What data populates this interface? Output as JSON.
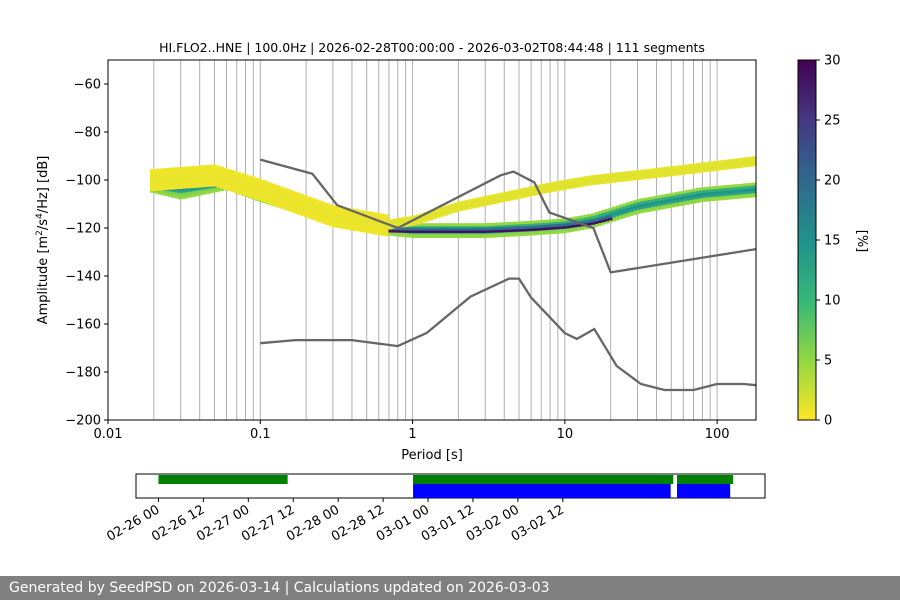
{
  "chart_data": [
    {
      "type": "heatmap",
      "title": "HI.FLO2..HNE | 100.0Hz | 2026-02-28T00:00:00 - 2026-03-02T08:44:48 | 111 segments",
      "xlabel": "Period [s]",
      "ylabel_parts": [
        "Amplitude [m",
        "2",
        "/s",
        "4",
        "/Hz] [dB]"
      ],
      "x_scale": "log",
      "xlim": [
        0.01,
        180
      ],
      "ylim": [
        -200,
        -50
      ],
      "x_ticks": [
        {
          "v": 0.01,
          "label": "0.01"
        },
        {
          "v": 0.1,
          "label": "0.1"
        },
        {
          "v": 1,
          "label": "1"
        },
        {
          "v": 10,
          "label": "10"
        },
        {
          "v": 100,
          "label": "100"
        }
      ],
      "y_ticks": [
        {
          "v": -60,
          "label": "−60"
        },
        {
          "v": -80,
          "label": "−80"
        },
        {
          "v": -100,
          "label": "−100"
        },
        {
          "v": -120,
          "label": "−120"
        },
        {
          "v": -140,
          "label": "−140"
        },
        {
          "v": -160,
          "label": "−160"
        },
        {
          "v": -180,
          "label": "−180"
        },
        {
          "v": -200,
          "label": "−200"
        }
      ],
      "grid": "vertical lines at log minor ticks",
      "colorbar": {
        "label": "[%]",
        "range": [
          0,
          30
        ],
        "ticks": [
          {
            "v": 0,
            "label": "0"
          },
          {
            "v": 5,
            "label": "5"
          },
          {
            "v": 10,
            "label": "10"
          },
          {
            "v": 15,
            "label": "15"
          },
          {
            "v": 20,
            "label": "20"
          },
          {
            "v": 25,
            "label": "25"
          },
          {
            "v": 30,
            "label": "30"
          }
        ],
        "colormap": "viridis_r"
      },
      "noise_models": [
        {
          "name": "NHNM",
          "color": "#666666",
          "points": [
            [
              0.1,
              -91.5
            ],
            [
              0.22,
              -97.4
            ],
            [
              0.32,
              -110.5
            ],
            [
              0.8,
              -120
            ],
            [
              3.8,
              -98
            ],
            [
              4.6,
              -96.5
            ],
            [
              6.3,
              -101
            ],
            [
              7.9,
              -113.5
            ],
            [
              15.4,
              -120
            ],
            [
              20,
              -138.5
            ],
            [
              180,
              -128.8
            ]
          ]
        },
        {
          "name": "NLNM",
          "color": "#666666",
          "points": [
            [
              0.1,
              -168
            ],
            [
              0.17,
              -166.7
            ],
            [
              0.4,
              -166.7
            ],
            [
              0.8,
              -169.2
            ],
            [
              1.24,
              -163.7
            ],
            [
              2.4,
              -148.6
            ],
            [
              4.3,
              -141.1
            ],
            [
              5,
              -141.1
            ],
            [
              6,
              -149
            ],
            [
              10,
              -163.8
            ],
            [
              12,
              -166.2
            ],
            [
              15.6,
              -162.1
            ],
            [
              21.9,
              -177.5
            ],
            [
              31.6,
              -185
            ],
            [
              45,
              -187.5
            ],
            [
              70,
              -187.5
            ],
            [
              100,
              -185
            ],
            [
              150,
              -185
            ],
            [
              180,
              -185.5
            ]
          ]
        }
      ],
      "density_bands": [
        {
          "centers": [
            [
              0.019,
              -102
            ],
            [
              0.03,
              -105
            ],
            [
              0.06,
              -101
            ],
            [
              0.1,
              -106
            ],
            [
              0.2,
              -112
            ],
            [
              0.4,
              -117
            ],
            [
              0.7,
              -120
            ],
            [
              1,
              -121
            ],
            [
              3,
              -121
            ],
            [
              6,
              -120
            ],
            [
              10,
              -119
            ],
            [
              15,
              -117
            ],
            [
              30,
              -111
            ],
            [
              80,
              -106
            ],
            [
              180,
              -104
            ]
          ],
          "width_db": 6,
          "value": 7
        },
        {
          "centers": [
            [
              0.019,
              -102
            ],
            [
              0.03,
              -104
            ],
            [
              0.06,
              -101
            ],
            [
              0.1,
              -105
            ],
            [
              0.2,
              -112
            ],
            [
              0.4,
              -117
            ],
            [
              0.7,
              -120
            ],
            [
              1,
              -121
            ],
            [
              3,
              -121
            ],
            [
              6,
              -120
            ],
            [
              10,
              -119
            ],
            [
              15,
              -117
            ],
            [
              30,
              -111
            ],
            [
              80,
              -106
            ],
            [
              180,
              -104
            ]
          ],
          "width_db": 2.5,
          "value": 16
        },
        {
          "centers": [
            [
              0.6,
              -121
            ],
            [
              1,
              -121.3
            ],
            [
              3,
              -121.3
            ],
            [
              6,
              -120.5
            ],
            [
              10,
              -119.5
            ],
            [
              15,
              -118
            ],
            [
              20,
              -116
            ]
          ],
          "width_db": 1.2,
          "value": 30
        },
        {
          "centers": [
            [
              0.6,
              -119
            ],
            [
              1,
              -117
            ],
            [
              2,
              -111
            ],
            [
              4,
              -107
            ],
            [
              8,
              -103
            ],
            [
              15,
              -100
            ],
            [
              40,
              -97
            ],
            [
              100,
              -94
            ],
            [
              180,
              -92
            ]
          ],
          "width_db": 4,
          "value": 1.5
        },
        {
          "centers": [
            [
              0.019,
              -100
            ],
            [
              0.05,
              -98
            ],
            [
              0.1,
              -104
            ],
            [
              0.3,
              -115
            ],
            [
              0.7,
              -119
            ]
          ],
          "width_db": 9,
          "value": 1
        }
      ]
    },
    {
      "type": "timeline",
      "x_ticks": [
        "02-26 00",
        "02-26 12",
        "02-27 00",
        "02-27 12",
        "02-28 00",
        "02-28 12",
        "03-01 00",
        "03-01 12",
        "03-02 00",
        "03-02 12"
      ],
      "x_start_hours": -6,
      "x_end_hours": 162,
      "green_segments_hours": [
        [
          0,
          34.5
        ],
        [
          68,
          137.5
        ],
        [
          138.5,
          153.5
        ]
      ],
      "blue_segments_hours": [
        [
          68,
          136.8
        ],
        [
          138.5,
          152.7
        ]
      ],
      "colors": {
        "green": "#008000",
        "blue": "#0000ff"
      }
    }
  ],
  "footer_text": "Generated by SeedPSD on 2026-03-14 | Calculations updated on 2026-03-03"
}
